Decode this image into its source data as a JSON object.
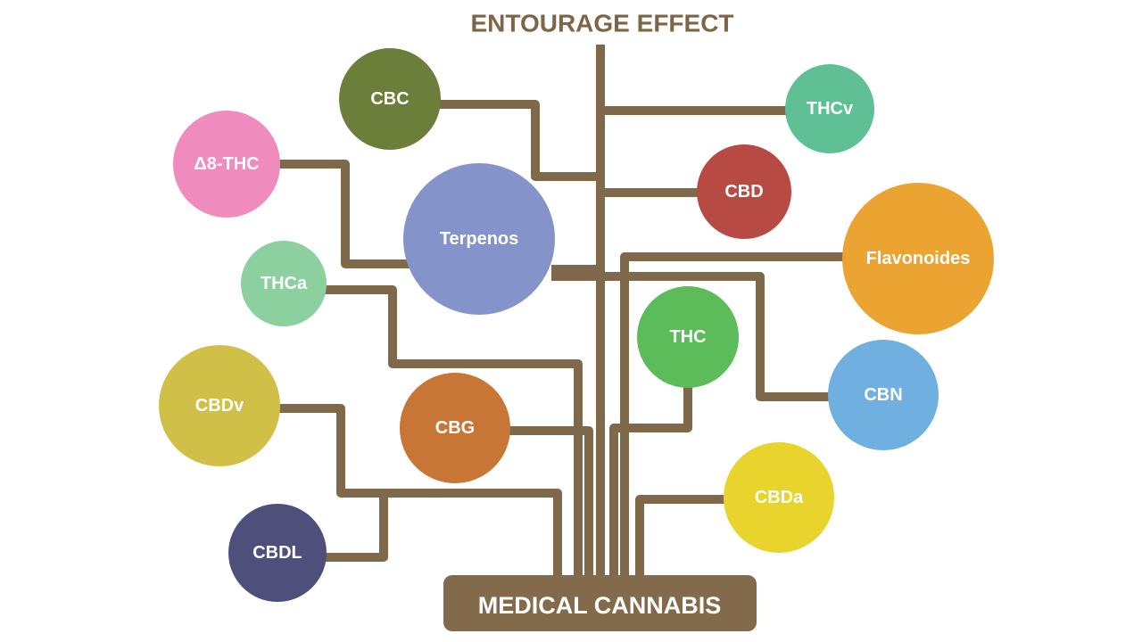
{
  "title": "ENTOURAGE EFFECT",
  "base_label": "MEDICAL CANNABIS",
  "colors": {
    "line": "#80684a",
    "base": "#836a4b",
    "title": "#7d6647"
  },
  "nodes": [
    {
      "id": "cbc",
      "label": "CBC",
      "color": "#6b7f3a"
    },
    {
      "id": "thcv",
      "label": "THCv",
      "color": "#5fc096"
    },
    {
      "id": "d8thc",
      "label": "Δ8-THC",
      "color": "#f08bbd"
    },
    {
      "id": "cbd",
      "label": "CBD",
      "color": "#b74a42"
    },
    {
      "id": "terpenos",
      "label": "Terpenos",
      "color": "#8593cb"
    },
    {
      "id": "flavonoides",
      "label": "Flavonoides",
      "color": "#eba332"
    },
    {
      "id": "thca",
      "label": "THCa",
      "color": "#8dd0a0"
    },
    {
      "id": "thc",
      "label": "THC",
      "color": "#5dbc5a"
    },
    {
      "id": "cbn",
      "label": "CBN",
      "color": "#6fb0e0"
    },
    {
      "id": "cbdv",
      "label": "CBDv",
      "color": "#d0c048"
    },
    {
      "id": "cbg",
      "label": "CBG",
      "color": "#c87636"
    },
    {
      "id": "cbda",
      "label": "CBDa",
      "color": "#e8d42c"
    },
    {
      "id": "cbdl",
      "label": "CBDL",
      "color": "#4f4f7c"
    }
  ]
}
